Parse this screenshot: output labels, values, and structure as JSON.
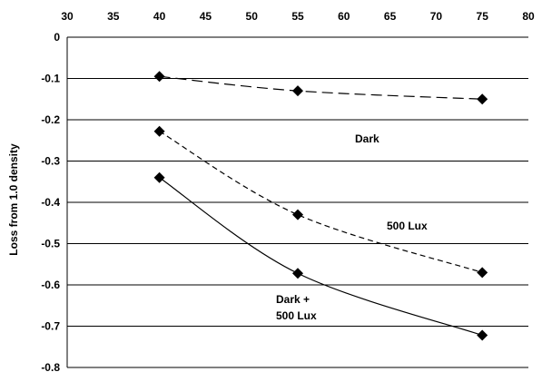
{
  "chart_data": {
    "type": "line",
    "title": "",
    "xlabel": "",
    "ylabel": "Loss from 1.0 density",
    "xlim": [
      30,
      80
    ],
    "ylim": [
      -0.8,
      0
    ],
    "x_ticks": [
      "30",
      "35",
      "40",
      "45",
      "50",
      "55",
      "60",
      "65",
      "70",
      "75",
      "80"
    ],
    "y_ticks": [
      "0",
      "-0.1",
      "-0.2",
      "-0.3",
      "-0.4",
      "-0.5",
      "-0.6",
      "-0.7",
      "-0.8"
    ],
    "x_axis_position": "top",
    "grid": "horizontal",
    "legend": "none",
    "marker": "diamond",
    "series": [
      {
        "name": "Dark",
        "line_style": "long-dash",
        "points": [
          {
            "x": 40,
            "y": -0.095
          },
          {
            "x": 55,
            "y": -0.13
          },
          {
            "x": 75,
            "y": -0.15
          }
        ]
      },
      {
        "name": "500 Lux",
        "line_style": "short-dash",
        "points": [
          {
            "x": 40,
            "y": -0.228
          },
          {
            "x": 55,
            "y": -0.43
          },
          {
            "x": 75,
            "y": -0.57
          }
        ]
      },
      {
        "name": "Dark + 500 Lux",
        "label_lines": [
          "Dark +",
          "500 Lux"
        ],
        "line_style": "solid",
        "points": [
          {
            "x": 40,
            "y": -0.34
          },
          {
            "x": 55,
            "y": -0.572
          },
          {
            "x": 75,
            "y": -0.722
          }
        ]
      }
    ],
    "colors": {
      "line": "#000000",
      "grid": "#000000",
      "marker": "#000000"
    }
  }
}
